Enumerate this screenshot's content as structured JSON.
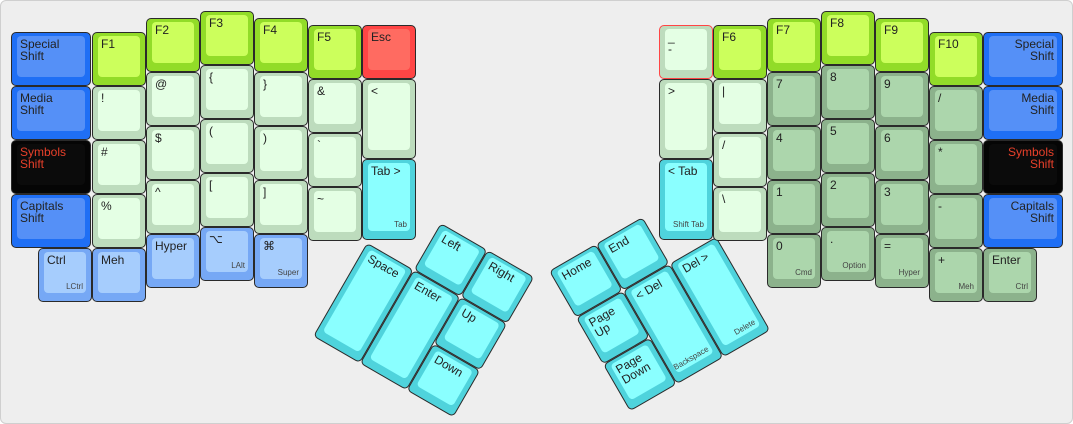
{
  "colors": {
    "blue": [
      "#1f6ff5",
      "#5590f7"
    ],
    "black": [
      "#050505",
      "#0b0b0b"
    ],
    "lime": [
      "#92dc28",
      "#ccff5c"
    ],
    "lightgreen": [
      "#bddcbd",
      "#e4ffe4"
    ],
    "lightblue": [
      "#76a8f5",
      "#a6cdfd"
    ],
    "cyan": [
      "#4fd3dc",
      "#8affff"
    ],
    "red": [
      "#ff4545",
      "#ff6b61"
    ],
    "darkgreen": [
      "#8cb28c",
      "#acd6ac"
    ],
    "symbols_text": "#e8402a"
  },
  "keys": [
    {
      "label": "Special\nShift",
      "color": "blue"
    },
    {
      "label": "Media\nShift",
      "color": "blue"
    },
    {
      "label": "Symbols\nShift",
      "color": "black"
    },
    {
      "label": "Capitals\nShift",
      "color": "blue"
    },
    {
      "label": "Ctrl",
      "sub": "LCtrl",
      "color": "lightblue"
    },
    {
      "label": "F1",
      "color": "lime"
    },
    {
      "label": "!",
      "color": "lightgreen"
    },
    {
      "label": "#",
      "color": "lightgreen"
    },
    {
      "label": "%",
      "color": "lightgreen"
    },
    {
      "label": "Meh",
      "color": "lightblue"
    },
    {
      "label": "F2",
      "color": "lime"
    },
    {
      "label": "@",
      "color": "lightgreen"
    },
    {
      "label": "$",
      "color": "lightgreen"
    },
    {
      "label": "^",
      "color": "lightgreen"
    },
    {
      "label": "Hyper",
      "color": "lightblue"
    },
    {
      "label": "F3",
      "color": "lime"
    },
    {
      "label": "{",
      "color": "lightgreen"
    },
    {
      "label": "(",
      "color": "lightgreen"
    },
    {
      "label": "[",
      "color": "lightgreen"
    },
    {
      "label": "⌥",
      "sub": "LAlt",
      "color": "lightblue"
    },
    {
      "label": "F4",
      "color": "lime"
    },
    {
      "label": "}",
      "color": "lightgreen"
    },
    {
      "label": ")",
      "color": "lightgreen"
    },
    {
      "label": "]",
      "color": "lightgreen"
    },
    {
      "label": "⌘",
      "sub": "Super",
      "color": "lightblue"
    },
    {
      "label": "F5",
      "color": "lime"
    },
    {
      "label": "&",
      "color": "lightgreen"
    },
    {
      "label": "`",
      "color": "lightgreen"
    },
    {
      "label": "~",
      "color": "lightgreen"
    },
    {
      "label": "Esc",
      "color": "red"
    },
    {
      "label": "<",
      "color": "lightgreen"
    },
    {
      "label": "Tab >",
      "sub": "Tab",
      "color": "cyan"
    },
    {
      "label": "_\n-",
      "color": "lightgreen",
      "outline": "#ff4545"
    },
    {
      "label": ">",
      "color": "lightgreen"
    },
    {
      "label": "< Tab",
      "sub": "Shift Tab",
      "color": "cyan"
    },
    {
      "label": "F6",
      "color": "lime"
    },
    {
      "label": "|",
      "color": "lightgreen"
    },
    {
      "label": "/",
      "color": "lightgreen"
    },
    {
      "label": "\\",
      "color": "lightgreen"
    },
    {
      "label": "F7",
      "color": "lime"
    },
    {
      "label": "7",
      "color": "darkgreen"
    },
    {
      "label": "4",
      "color": "darkgreen"
    },
    {
      "label": "1",
      "color": "darkgreen"
    },
    {
      "label": "0",
      "sub": "Cmd",
      "color": "darkgreen"
    },
    {
      "label": "F8",
      "color": "lime"
    },
    {
      "label": "8",
      "color": "darkgreen"
    },
    {
      "label": "5",
      "color": "darkgreen"
    },
    {
      "label": "2",
      "color": "darkgreen"
    },
    {
      "label": ".",
      "sub": "Option",
      "color": "darkgreen"
    },
    {
      "label": "F9",
      "color": "lime"
    },
    {
      "label": "9",
      "color": "darkgreen"
    },
    {
      "label": "6",
      "color": "darkgreen"
    },
    {
      "label": "3",
      "color": "darkgreen"
    },
    {
      "label": "=",
      "sub": "Hyper",
      "color": "darkgreen"
    },
    {
      "label": "F10",
      "color": "lime"
    },
    {
      "label": "/",
      "color": "darkgreen"
    },
    {
      "label": "*",
      "color": "darkgreen"
    },
    {
      "label": "-",
      "color": "darkgreen"
    },
    {
      "label": "+",
      "sub": "Meh",
      "color": "darkgreen"
    },
    {
      "label": "Special\nShift",
      "color": "blue",
      "align": "right"
    },
    {
      "label": "Media\nShift",
      "color": "blue",
      "align": "right"
    },
    {
      "label": "Symbols\nShift",
      "color": "black",
      "align": "right"
    },
    {
      "label": "Capitals\nShift",
      "color": "blue",
      "align": "right"
    },
    {
      "label": "Enter",
      "sub": "Ctrl",
      "color": "darkgreen"
    }
  ],
  "left_thumb": [
    {
      "label": "Left",
      "color": "cyan"
    },
    {
      "label": "Right",
      "color": "cyan"
    },
    {
      "label": "Space",
      "color": "cyan"
    },
    {
      "label": "Enter",
      "color": "cyan"
    },
    {
      "label": "Up",
      "color": "cyan"
    },
    {
      "label": "Down",
      "color": "cyan"
    }
  ],
  "right_thumb": [
    {
      "label": "Home",
      "color": "cyan"
    },
    {
      "label": "End",
      "color": "cyan"
    },
    {
      "label": "Page\nUp",
      "color": "cyan"
    },
    {
      "label": "Page\nDown",
      "color": "cyan"
    },
    {
      "label": "< Del",
      "sub": "Backspace",
      "color": "cyan"
    },
    {
      "label": "Del >",
      "sub": "Delete",
      "color": "cyan"
    }
  ]
}
